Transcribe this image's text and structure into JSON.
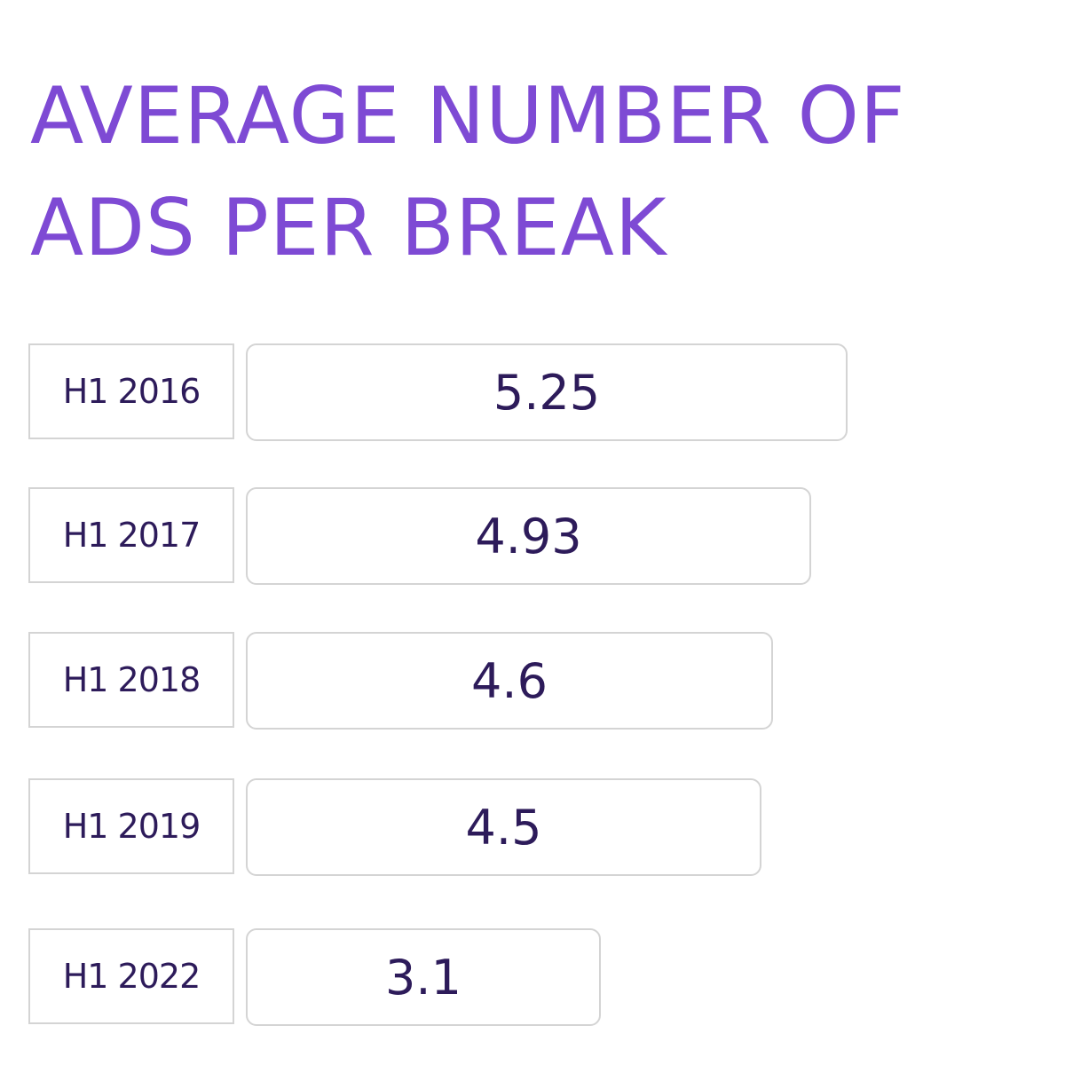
{
  "chart_data": {
    "type": "bar",
    "orientation": "horizontal",
    "title": "AVERAGE NUMBER OF ADS PER BREAK",
    "categories": [
      "H1 2016",
      "H1 2017",
      "H1 2018",
      "H1 2019",
      "H1 2022"
    ],
    "values": [
      5.25,
      4.93,
      4.6,
      4.5,
      3.1
    ],
    "value_labels": [
      "5.25",
      "4.93",
      "4.6",
      "4.5",
      "3.1"
    ],
    "xlabel": "",
    "ylabel": "",
    "grid": false,
    "legend": "none"
  },
  "colors": {
    "title": "#7e4ad4",
    "text": "#2d1b5a",
    "border": "#d4d4d4"
  }
}
